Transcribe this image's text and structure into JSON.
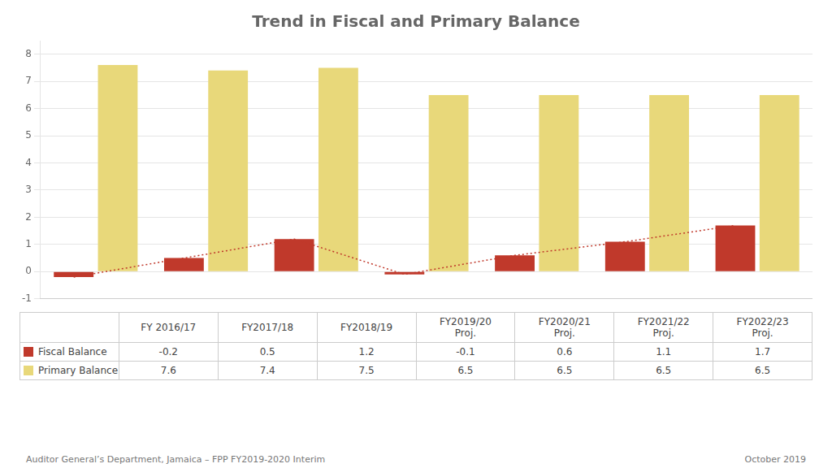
{
  "chart_data": {
    "type": "bar",
    "title": "Trend in Fiscal and Primary Balance",
    "categories": [
      "FY 2016/17",
      "FY2017/18",
      "FY2018/19",
      "FY2019/20\nProj.",
      "FY2020/21\nProj.",
      "FY2021/22\nProj.",
      "FY2022/23\nProj."
    ],
    "series": [
      {
        "name": "Fiscal Balance",
        "color": "#c0392b",
        "line_style": "dotted",
        "values": [
          -0.2,
          0.5,
          1.2,
          -0.1,
          0.6,
          1.1,
          1.7
        ]
      },
      {
        "name": "Primary Balance",
        "color": "#e8d87a",
        "values": [
          7.6,
          7.4,
          7.5,
          6.5,
          6.5,
          6.5,
          6.5
        ]
      }
    ],
    "ylim": [
      -1,
      8.5
    ],
    "yticks": [
      -1,
      0,
      1,
      2,
      3,
      4,
      5,
      6,
      7,
      8
    ],
    "grid": true,
    "tick_labels": "y",
    "annotations": [
      "Auditor General’s Department, Jamaica – FPP FY2019-2020 Interim",
      "October 2019"
    ]
  }
}
